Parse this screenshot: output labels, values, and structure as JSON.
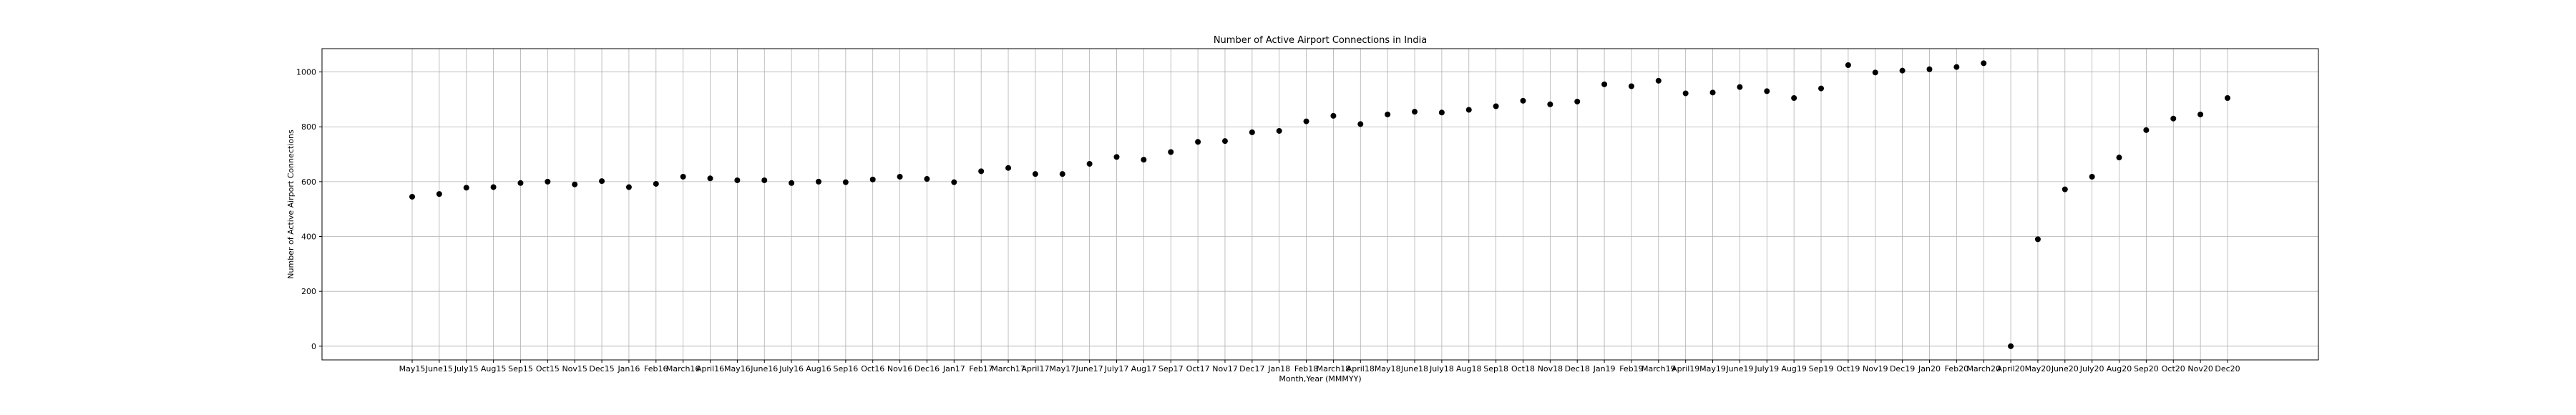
{
  "chart_data": {
    "type": "scatter",
    "title": "Number of Active Airport Connections in India",
    "xlabel": "Month,Year (MMMYY)",
    "ylabel": "Number of Active Airport Connections",
    "ylim": [
      -50,
      1085
    ],
    "yticks": [
      0,
      200,
      400,
      600,
      800,
      1000
    ],
    "grid": true,
    "marker_color": "#000000",
    "categories": [
      "May15",
      "June15",
      "July15",
      "Aug15",
      "Sep15",
      "Oct15",
      "Nov15",
      "Dec15",
      "Jan16",
      "Feb16",
      "March16",
      "April16",
      "May16",
      "June16",
      "July16",
      "Aug16",
      "Sep16",
      "Oct16",
      "Nov16",
      "Dec16",
      "Jan17",
      "Feb17",
      "March17",
      "April17",
      "May17",
      "June17",
      "July17",
      "Aug17",
      "Sep17",
      "Oct17",
      "Nov17",
      "Dec17",
      "Jan18",
      "Feb18",
      "March18",
      "April18",
      "May18",
      "June18",
      "July18",
      "Aug18",
      "Sep18",
      "Oct18",
      "Nov18",
      "Dec18",
      "Jan19",
      "Feb19",
      "March19",
      "April19",
      "May19",
      "June19",
      "July19",
      "Aug19",
      "Sep19",
      "Oct19",
      "Nov19",
      "Dec19",
      "Jan20",
      "Feb20",
      "March20",
      "April20",
      "May20",
      "June20",
      "July20",
      "Aug20",
      "Sep20",
      "Oct20",
      "Nov20",
      "Dec20"
    ],
    "values": [
      545,
      555,
      578,
      580,
      595,
      600,
      590,
      602,
      580,
      592,
      618,
      612,
      605,
      605,
      595,
      600,
      598,
      608,
      618,
      610,
      598,
      638,
      650,
      628,
      628,
      665,
      690,
      680,
      708,
      745,
      748,
      780,
      785,
      820,
      840,
      810,
      845,
      855,
      852,
      862,
      875,
      895,
      882,
      892,
      955,
      948,
      968,
      922,
      925,
      945,
      930,
      905,
      940,
      1025,
      998,
      1005,
      1010,
      1018,
      1032,
      0,
      390,
      572,
      618,
      688,
      788,
      830,
      845,
      905
    ]
  }
}
